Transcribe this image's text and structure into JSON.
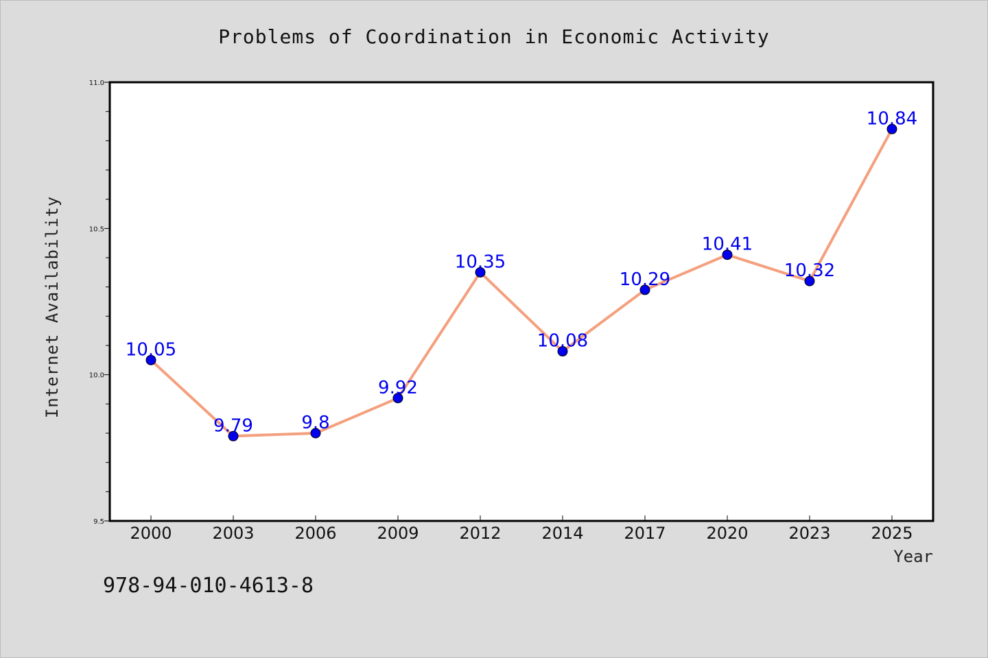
{
  "chart_data": {
    "type": "line",
    "title": "Problems of Coordination in Economic Activity",
    "xlabel": "Year",
    "ylabel": "Internet Availability",
    "categories": [
      "2000",
      "2003",
      "2006",
      "2009",
      "2012",
      "2014",
      "2017",
      "2020",
      "2023",
      "2025"
    ],
    "series": [
      {
        "values": [
          10.05,
          9.79,
          9.8,
          9.92,
          10.35,
          10.08,
          10.29,
          10.41,
          10.32,
          10.84
        ],
        "labels": [
          "10.05",
          "9.79",
          "9.8",
          "9.92",
          "10.35",
          "10.08",
          "10.29",
          "10.41",
          "10.32",
          "10.84"
        ],
        "line_color": "#f4a07e",
        "marker_color": "#0000ee"
      }
    ],
    "ylim": [
      9.5,
      11.0
    ],
    "yticks_major": [
      "9.5",
      "10.0",
      "10.5",
      "11.0"
    ],
    "grid": false,
    "legend": "none"
  },
  "annotation": "978-94-010-4613-8",
  "colors": {
    "background": "#dcdcdc",
    "plot_background": "#ffffff",
    "axis": "#000000"
  }
}
